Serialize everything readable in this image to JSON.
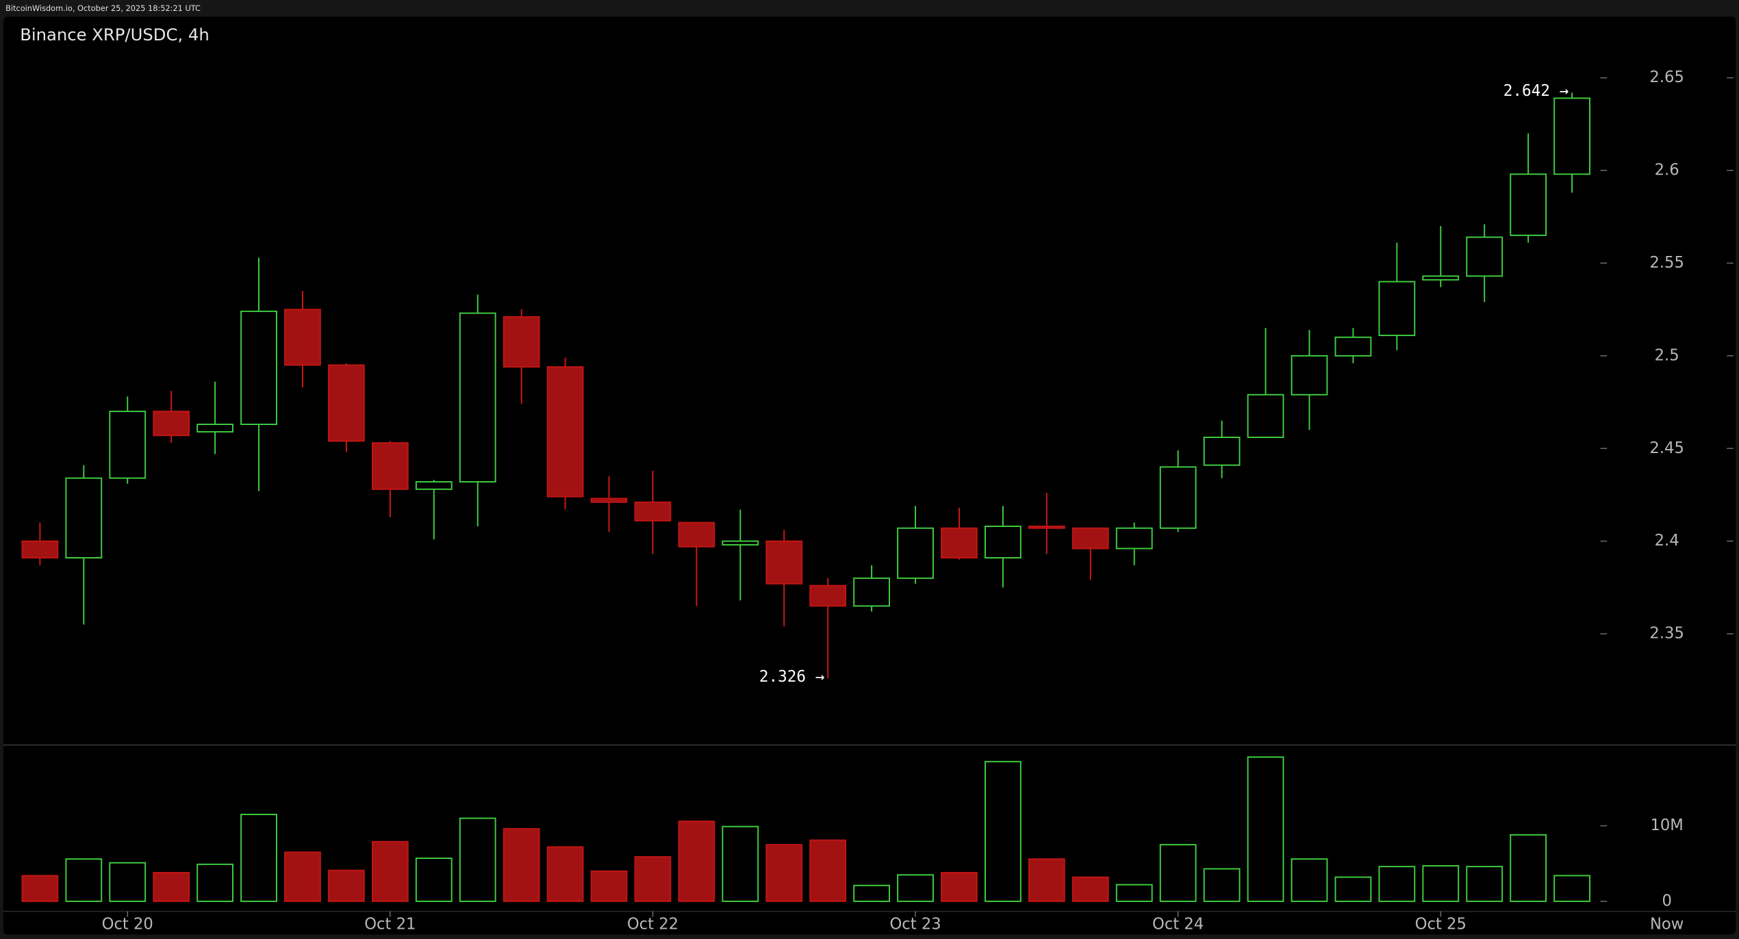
{
  "chart_data": {
    "type": "candlestick",
    "header": "BitcoinWisdom.io, October 25, 2025 18:52:21 UTC",
    "title": "Binance XRP/USDC, 4h",
    "categories": [
      null,
      null,
      "Oct 20",
      null,
      null,
      null,
      null,
      null,
      "Oct 21",
      null,
      null,
      null,
      null,
      null,
      "Oct 22",
      null,
      null,
      null,
      null,
      null,
      "Oct 23",
      null,
      null,
      null,
      null,
      null,
      "Oct 24",
      null,
      null,
      null,
      null,
      null,
      "Oct 25",
      null,
      null,
      null
    ],
    "now_label": "Now",
    "open": [
      2.4,
      2.391,
      2.434,
      2.47,
      2.459,
      2.463,
      2.525,
      2.495,
      2.453,
      2.428,
      2.432,
      2.521,
      2.494,
      2.423,
      2.421,
      2.41,
      2.398,
      2.4,
      2.376,
      2.365,
      2.38,
      2.407,
      2.391,
      2.408,
      2.407,
      2.396,
      2.407,
      2.441,
      2.456,
      2.479,
      2.5,
      2.511,
      2.541,
      2.543,
      2.565,
      2.598
    ],
    "high": [
      2.41,
      2.441,
      2.478,
      2.481,
      2.486,
      2.553,
      2.535,
      2.496,
      2.454,
      2.433,
      2.533,
      2.525,
      2.499,
      2.435,
      2.438,
      2.41,
      2.417,
      2.406,
      2.38,
      2.387,
      2.419,
      2.418,
      2.419,
      2.426,
      2.407,
      2.41,
      2.449,
      2.465,
      2.515,
      2.514,
      2.515,
      2.561,
      2.57,
      2.571,
      2.62,
      2.642
    ],
    "low": [
      2.387,
      2.355,
      2.431,
      2.453,
      2.447,
      2.427,
      2.483,
      2.448,
      2.413,
      2.401,
      2.408,
      2.474,
      2.417,
      2.405,
      2.393,
      2.365,
      2.368,
      2.354,
      2.326,
      2.362,
      2.377,
      2.39,
      2.375,
      2.393,
      2.379,
      2.387,
      2.405,
      2.434,
      2.456,
      2.46,
      2.496,
      2.503,
      2.537,
      2.529,
      2.561,
      2.588
    ],
    "close": [
      2.391,
      2.434,
      2.47,
      2.457,
      2.463,
      2.524,
      2.495,
      2.454,
      2.428,
      2.432,
      2.523,
      2.494,
      2.424,
      2.421,
      2.411,
      2.397,
      2.4,
      2.377,
      2.365,
      2.38,
      2.407,
      2.391,
      2.408,
      2.407,
      2.396,
      2.407,
      2.44,
      2.456,
      2.479,
      2.5,
      2.51,
      2.54,
      2.543,
      2.564,
      2.598,
      2.639
    ],
    "volume": [
      3400000,
      5600000,
      5100000,
      3800000,
      4900000,
      11500000,
      6500000,
      4100000,
      7900000,
      5700000,
      11000000,
      9600000,
      7200000,
      4000000,
      5900000,
      10600000,
      9900000,
      7500000,
      8100000,
      2100000,
      3500000,
      3800000,
      18500000,
      5600000,
      3200000,
      2200000,
      7500000,
      4300000,
      19100000,
      5600000,
      3200000,
      4600000,
      4700000,
      4600000,
      8800000,
      3400000
    ],
    "up_color": "#3fcf3f",
    "down_color": "#a31212",
    "ylim": [
      2.29,
      2.683
    ],
    "yticks": [
      2.35,
      2.4,
      2.45,
      2.5,
      2.55,
      2.6,
      2.65
    ],
    "volume_ylim": [
      0,
      20700000
    ],
    "volume_yticks": [
      0,
      {
        "value": 10000000,
        "label": "10M"
      }
    ],
    "annotations": [
      {
        "value": 2.642,
        "label": "2.642 →"
      },
      {
        "value": 2.326,
        "label": "2.326 →"
      }
    ]
  }
}
